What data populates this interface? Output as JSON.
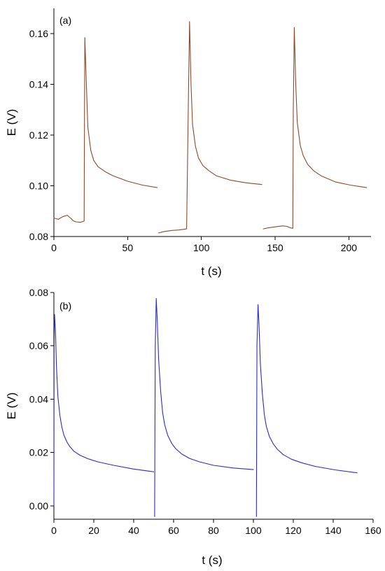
{
  "chart_data": [
    {
      "type": "line",
      "panel_label": "(a)",
      "xlabel": "t (s)",
      "ylabel": "E (V)",
      "xlim": [
        0,
        215
      ],
      "ylim": [
        0.08,
        0.17
      ],
      "x_ticks": [
        0,
        50,
        100,
        150,
        200
      ],
      "y_ticks": [
        0.08,
        0.1,
        0.12,
        0.14,
        0.16
      ],
      "x_tick_labels": [
        "0",
        "50",
        "100",
        "150",
        "200"
      ],
      "y_tick_labels": [
        "0.08",
        "0.10",
        "0.12",
        "0.14",
        "0.16"
      ],
      "grid": false,
      "color": "#8b4a2b",
      "series": [
        {
          "x": [
            0,
            3,
            6,
            9,
            12,
            13,
            15,
            18,
            20.5,
            20.8,
            21,
            22,
            23,
            25,
            27,
            30,
            35,
            40,
            50,
            60,
            70
          ],
          "values": [
            0.0873,
            0.0868,
            0.0878,
            0.0884,
            0.0869,
            0.0862,
            0.0858,
            0.0856,
            0.0861,
            0.135,
            0.1585,
            0.14,
            0.123,
            0.114,
            0.11,
            0.1075,
            0.1055,
            0.104,
            0.1018,
            0.1003,
            0.0993
          ]
        },
        {
          "x": [
            71,
            75,
            80,
            85,
            90,
            91.2,
            92,
            93,
            94,
            96,
            98,
            101,
            105,
            110,
            120,
            130,
            141
          ],
          "values": [
            0.0814,
            0.082,
            0.0824,
            0.0826,
            0.083,
            0.135,
            0.1648,
            0.14,
            0.124,
            0.1155,
            0.111,
            0.108,
            0.106,
            0.104,
            0.1022,
            0.1012,
            0.1005
          ]
        },
        {
          "x": [
            142,
            145,
            150,
            155,
            158,
            160,
            162,
            162.3,
            163,
            164,
            165,
            167,
            169,
            172,
            176,
            181,
            191,
            201,
            212
          ],
          "values": [
            0.083,
            0.0834,
            0.0838,
            0.0842,
            0.084,
            0.0835,
            0.0832,
            0.13,
            0.1625,
            0.14,
            0.125,
            0.116,
            0.112,
            0.1085,
            0.106,
            0.104,
            0.1015,
            0.1003,
            0.0993
          ]
        }
      ]
    },
    {
      "type": "line",
      "panel_label": "(b)",
      "xlabel": "t (s)",
      "ylabel": "E (V)",
      "xlim": [
        0,
        160
      ],
      "ylim": [
        -0.005,
        0.08
      ],
      "x_ticks": [
        0,
        20,
        40,
        60,
        80,
        100,
        120,
        140,
        160
      ],
      "y_ticks": [
        0.0,
        0.02,
        0.04,
        0.06,
        0.08
      ],
      "x_tick_labels": [
        "0",
        "20",
        "40",
        "60",
        "80",
        "100",
        "120",
        "140",
        "160"
      ],
      "y_tick_labels": [
        "0.00",
        "0.02",
        "0.04",
        "0.06",
        "0.08"
      ],
      "grid": false,
      "color": "#2b2bcc",
      "series": [
        {
          "x": [
            0,
            0.1,
            0.3,
            0.8,
            1.3,
            2,
            3,
            4,
            5,
            6.5,
            8,
            10,
            13,
            17,
            22,
            30,
            40,
            50
          ],
          "values": [
            0.0,
            0.06,
            0.0718,
            0.065,
            0.052,
            0.041,
            0.034,
            0.0295,
            0.0265,
            0.024,
            0.0222,
            0.0205,
            0.019,
            0.0177,
            0.0165,
            0.0152,
            0.0138,
            0.0128
          ]
        },
        {
          "x": [
            50.5,
            50.8,
            51.3,
            51.8,
            52.5,
            53.5,
            54.5,
            55.5,
            57,
            59,
            61,
            64,
            68,
            73,
            80,
            90,
            100
          ],
          "values": [
            -0.004,
            0.06,
            0.0778,
            0.07,
            0.055,
            0.043,
            0.035,
            0.0305,
            0.0265,
            0.0235,
            0.0215,
            0.0195,
            0.0178,
            0.0165,
            0.0152,
            0.0142,
            0.0136
          ]
        },
        {
          "x": [
            101.5,
            101.8,
            102.3,
            102.8,
            103.5,
            104.5,
            105.5,
            106.5,
            108,
            110,
            112,
            115,
            119,
            124,
            131,
            141,
            152
          ],
          "values": [
            -0.004,
            0.06,
            0.0755,
            0.068,
            0.053,
            0.042,
            0.034,
            0.0298,
            0.026,
            0.0232,
            0.0212,
            0.0192,
            0.0175,
            0.0162,
            0.0148,
            0.0135,
            0.0124
          ]
        }
      ]
    }
  ]
}
